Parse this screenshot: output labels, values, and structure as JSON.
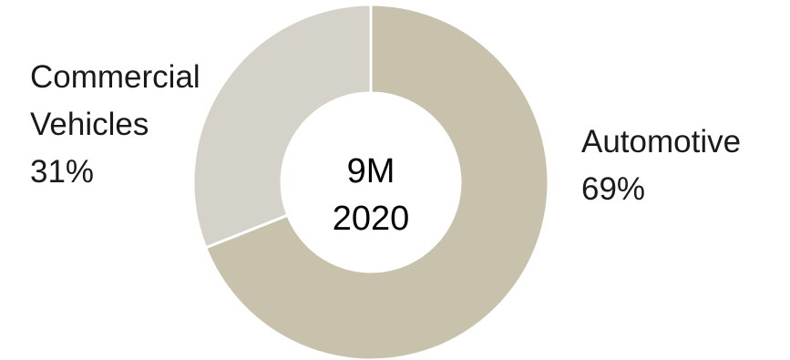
{
  "chart_data": {
    "type": "pie",
    "donut": true,
    "center_text": [
      "9M",
      "2020"
    ],
    "slices": [
      {
        "label_lines": [
          "Automotive"
        ],
        "value_label": "69%",
        "value": 69,
        "color": "#c8c2ac"
      },
      {
        "label_lines": [
          "Commercial",
          "Vehicles"
        ],
        "value_label": "31%",
        "value": 31,
        "color": "#d5d2ca"
      }
    ],
    "legend": "none"
  }
}
